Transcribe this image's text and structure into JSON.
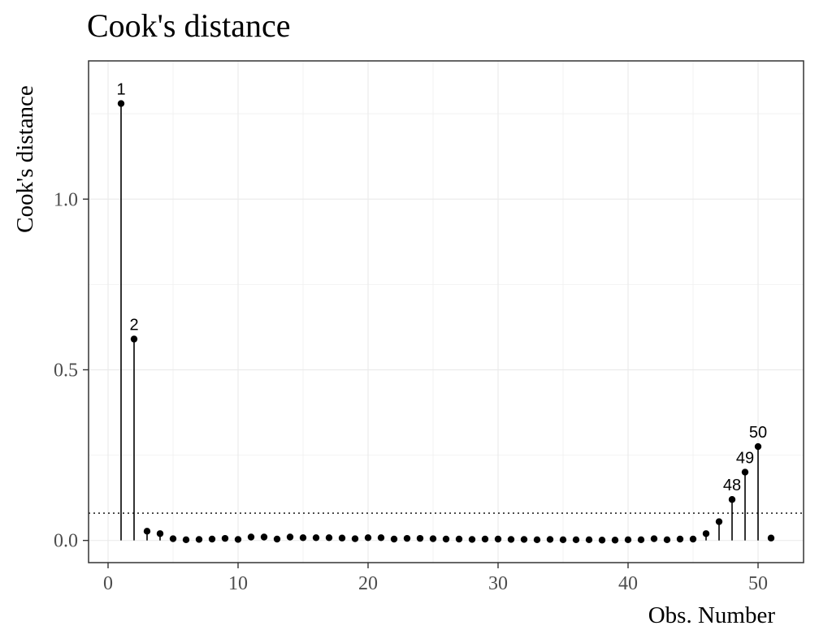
{
  "chart_data": {
    "type": "scatter",
    "title": "Cook's distance",
    "xlabel": "Obs. Number",
    "ylabel": "Cook's distance",
    "xlim": [
      -1.5,
      53.5
    ],
    "ylim": [
      -0.065,
      1.405
    ],
    "xticks": [
      0,
      10,
      20,
      30,
      40,
      50
    ],
    "xtick_labels": [
      "0",
      "10",
      "20",
      "30",
      "40",
      "50"
    ],
    "yticks": [
      0.0,
      0.5,
      1.0
    ],
    "ytick_labels": [
      "0.0",
      "0.5",
      "1.0"
    ],
    "threshold": 0.08,
    "grid": true,
    "x": [
      1,
      2,
      3,
      4,
      5,
      6,
      7,
      8,
      9,
      10,
      11,
      12,
      13,
      14,
      15,
      16,
      17,
      18,
      19,
      20,
      21,
      22,
      23,
      24,
      25,
      26,
      27,
      28,
      29,
      30,
      31,
      32,
      33,
      34,
      35,
      36,
      37,
      38,
      39,
      40,
      41,
      42,
      43,
      44,
      45,
      46,
      47,
      48,
      49,
      50,
      51
    ],
    "y": [
      1.28,
      0.59,
      0.027,
      0.02,
      0.005,
      0.002,
      0.003,
      0.004,
      0.006,
      0.003,
      0.01,
      0.01,
      0.004,
      0.01,
      0.008,
      0.008,
      0.008,
      0.007,
      0.005,
      0.008,
      0.008,
      0.004,
      0.006,
      0.006,
      0.005,
      0.004,
      0.004,
      0.003,
      0.004,
      0.004,
      0.003,
      0.003,
      0.002,
      0.003,
      0.002,
      0.002,
      0.002,
      0.001,
      0.001,
      0.002,
      0.002,
      0.005,
      0.002,
      0.004,
      0.004,
      0.02,
      0.055,
      0.12,
      0.2,
      0.275,
      0.007
    ],
    "labeled_points": [
      {
        "x": 1,
        "y": 1.28,
        "label": "1"
      },
      {
        "x": 2,
        "y": 0.59,
        "label": "2"
      },
      {
        "x": 48,
        "y": 0.12,
        "label": "48"
      },
      {
        "x": 49,
        "y": 0.2,
        "label": "49"
      },
      {
        "x": 50,
        "y": 0.275,
        "label": "50"
      }
    ]
  }
}
